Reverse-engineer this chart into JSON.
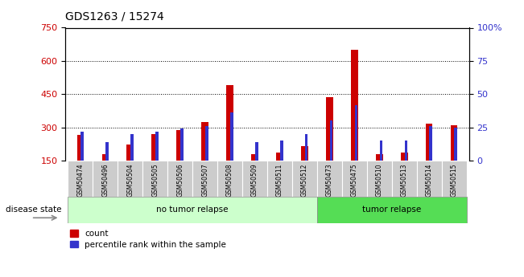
{
  "title": "GDS1263 / 15274",
  "categories": [
    "GSM50474",
    "GSM50496",
    "GSM50504",
    "GSM50505",
    "GSM50506",
    "GSM50507",
    "GSM50508",
    "GSM50509",
    "GSM50511",
    "GSM50512",
    "GSM50473",
    "GSM50475",
    "GSM50510",
    "GSM50513",
    "GSM50514",
    "GSM50515"
  ],
  "count_values": [
    268,
    178,
    222,
    270,
    288,
    325,
    490,
    178,
    188,
    215,
    435,
    650,
    178,
    188,
    318,
    308
  ],
  "percentile_values": [
    22,
    14,
    20,
    22,
    24,
    26,
    36,
    14,
    15,
    20,
    30,
    42,
    15,
    15,
    26,
    25
  ],
  "no_tumor_count": 10,
  "tumor_count": 6,
  "group_labels": [
    "no tumor relapse",
    "tumor relapse"
  ],
  "ylim_left": [
    150,
    750
  ],
  "ylim_right": [
    0,
    100
  ],
  "yticks_left": [
    150,
    300,
    450,
    600,
    750
  ],
  "yticks_right": [
    0,
    25,
    50,
    75,
    100
  ],
  "red_color": "#cc0000",
  "blue_color": "#3333cc",
  "no_tumor_bg": "#ccffcc",
  "tumor_bg": "#55dd55",
  "label_bg": "#cccccc",
  "disease_state_label": "disease state"
}
